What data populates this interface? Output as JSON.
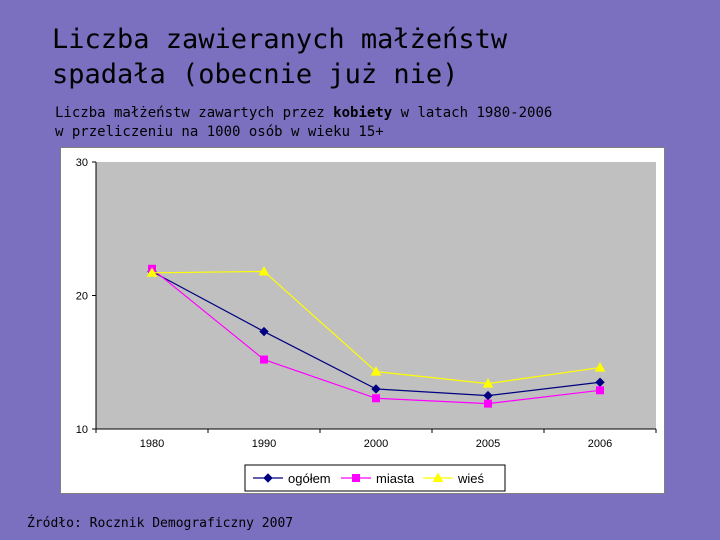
{
  "slide": {
    "title_line1": "Liczba zawieranych małżeństw",
    "title_line2": "spadała (obecnie już nie)",
    "subtitle_pre": "Liczba małżeństw zawartych przez ",
    "subtitle_bold": "kobiety",
    "subtitle_post": " w latach 1980-2006",
    "subtitle_line2": "w przeliczeniu na 1000 osób w wieku 15+",
    "source": "Źródło: Rocznik Demograficzny 2007"
  },
  "colors": {
    "background": "#7b6fbf",
    "plot_area": "#c0c0c0",
    "ogolem": "#000080",
    "miasta": "#ff00ff",
    "wies": "#ffff00"
  },
  "chart_data": {
    "type": "line",
    "title": "",
    "xlabel": "",
    "ylabel": "",
    "categories": [
      "1980",
      "1990",
      "2000",
      "2005",
      "2006"
    ],
    "ylim": [
      10,
      30
    ],
    "yticks": [
      10,
      20,
      30
    ],
    "grid": false,
    "legend": "bottom",
    "series": [
      {
        "name": "ogółem",
        "values": [
          21.8,
          17.3,
          13.0,
          12.5,
          13.5
        ],
        "color": "#000080",
        "marker": "diamond"
      },
      {
        "name": "miasta",
        "values": [
          22.0,
          15.2,
          12.3,
          11.9,
          12.9
        ],
        "color": "#ff00ff",
        "marker": "square"
      },
      {
        "name": "wieś",
        "values": [
          21.7,
          21.8,
          14.3,
          13.4,
          14.6
        ],
        "color": "#ffff00",
        "marker": "triangle"
      }
    ]
  }
}
